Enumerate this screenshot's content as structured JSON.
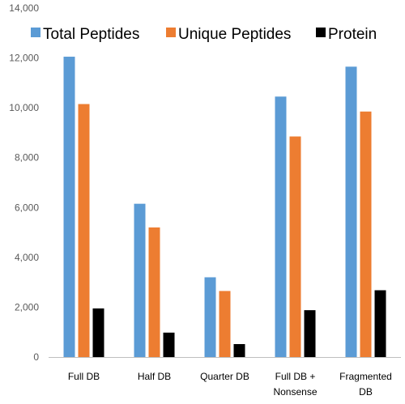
{
  "chart_data": {
    "type": "bar",
    "title": "",
    "xlabel": "",
    "ylabel": "",
    "ylim": [
      0,
      14000
    ],
    "y_ticks": [
      0,
      2000,
      4000,
      6000,
      8000,
      10000,
      12000,
      14000
    ],
    "y_tick_labels": [
      "0",
      "2,000",
      "4,000",
      "6,000",
      "8,000",
      "10,000",
      "12,000",
      "14,000"
    ],
    "grid": false,
    "legend_position": "top",
    "categories": [
      [
        "Full DB"
      ],
      [
        "Half DB"
      ],
      [
        "Quarter DB"
      ],
      [
        "Full DB +",
        "Nonsense"
      ],
      [
        "Fragmented",
        "DB"
      ]
    ],
    "series": [
      {
        "name": "Total Peptides",
        "color": "#5B9BD5",
        "values": [
          12050,
          6150,
          3200,
          10450,
          11650
        ]
      },
      {
        "name": "Unique Peptides",
        "color": "#ED7D31",
        "values": [
          10150,
          5200,
          2650,
          8850,
          9850
        ]
      },
      {
        "name": "Protein",
        "color": "#000000",
        "values": [
          1950,
          980,
          520,
          1880,
          2680
        ]
      }
    ]
  }
}
